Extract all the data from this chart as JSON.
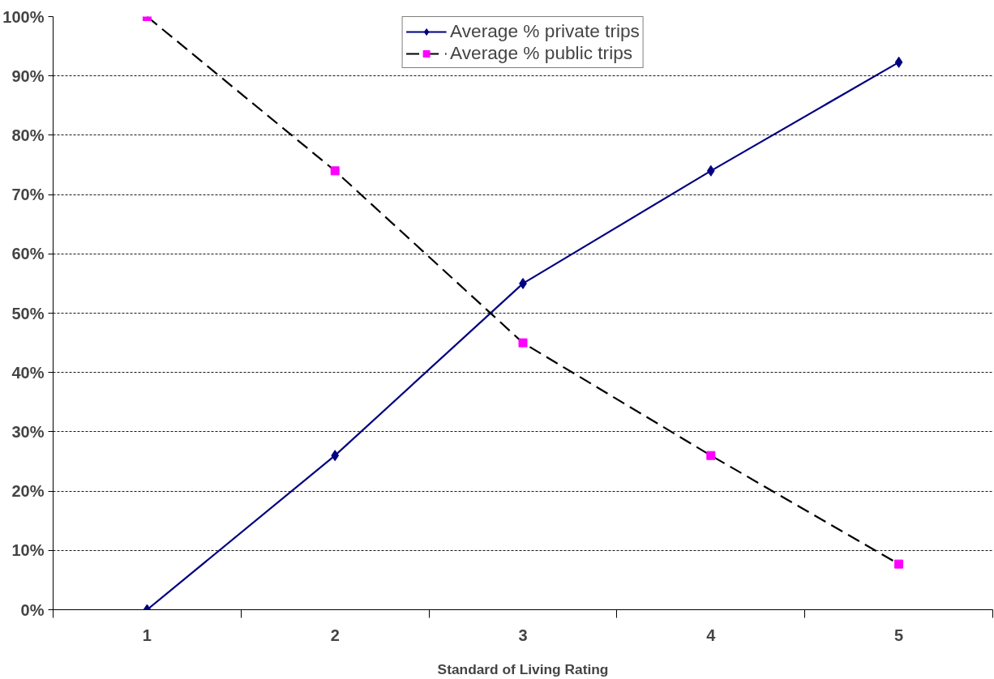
{
  "chart_data": {
    "type": "line",
    "xlabel": "Standard of Living Rating",
    "categories": [
      "1",
      "2",
      "3",
      "4",
      "5"
    ],
    "series": [
      {
        "name": "Average % private trips",
        "color": "#000080",
        "marker": "diamond",
        "line_style": "solid",
        "values": [
          0,
          26,
          55,
          74,
          92.3
        ]
      },
      {
        "name": "Average % public trips",
        "color": "#000000",
        "colors": [
          "#ff00ff",
          "#ff00ff",
          "#ff00ff",
          "#ff00ff",
          "#ff00ff"
        ],
        "marker": "square",
        "line_style": "dashed",
        "values": [
          100,
          74,
          45,
          26,
          7.7
        ]
      }
    ],
    "ylim": [
      0,
      100
    ],
    "yticks": [
      {
        "value": 0,
        "label": "0%"
      },
      {
        "value": 10,
        "label": "10%"
      },
      {
        "value": 20,
        "label": "20%"
      },
      {
        "value": 30,
        "label": "30%"
      },
      {
        "value": 40,
        "label": "40%"
      },
      {
        "value": 50,
        "label": "50%"
      },
      {
        "value": 60,
        "label": "60%"
      },
      {
        "value": 70,
        "label": "70%"
      },
      {
        "value": 80,
        "label": "80%"
      },
      {
        "value": 90,
        "label": "90%"
      },
      {
        "value": 100,
        "label": "100%"
      }
    ],
    "grid": "y",
    "legend": "top"
  }
}
